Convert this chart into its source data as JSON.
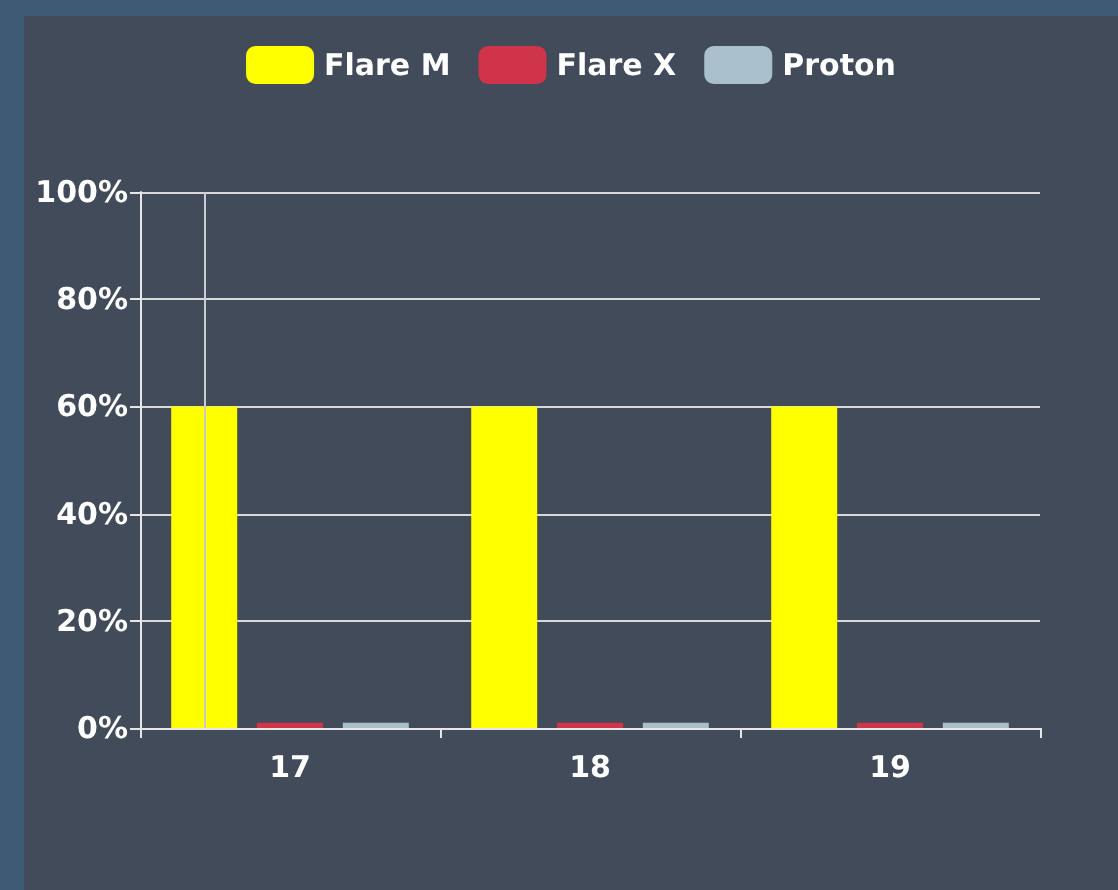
{
  "chart_data": {
    "type": "bar",
    "categories": [
      "17",
      "18",
      "19"
    ],
    "series": [
      {
        "name": "Flare M",
        "color": "#ffff00",
        "values": [
          60,
          60,
          60
        ]
      },
      {
        "name": "Flare X",
        "color": "#d0344a",
        "values": [
          1,
          1,
          1
        ]
      },
      {
        "name": "Proton",
        "color": "#a9c0cc",
        "values": [
          1,
          1,
          1
        ]
      }
    ],
    "ylim": [
      0,
      100
    ],
    "yticks": [
      {
        "value": 0,
        "label": "0%"
      },
      {
        "value": 20,
        "label": "20%"
      },
      {
        "value": 40,
        "label": "40%"
      },
      {
        "value": 60,
        "label": "60%"
      },
      {
        "value": 80,
        "label": "80%"
      },
      {
        "value": 100,
        "label": "100%"
      }
    ],
    "ref_lines": [
      {
        "axis": "x",
        "value": "17",
        "color": "#c8ccd2"
      }
    ],
    "grid": "y",
    "legend": "top"
  }
}
